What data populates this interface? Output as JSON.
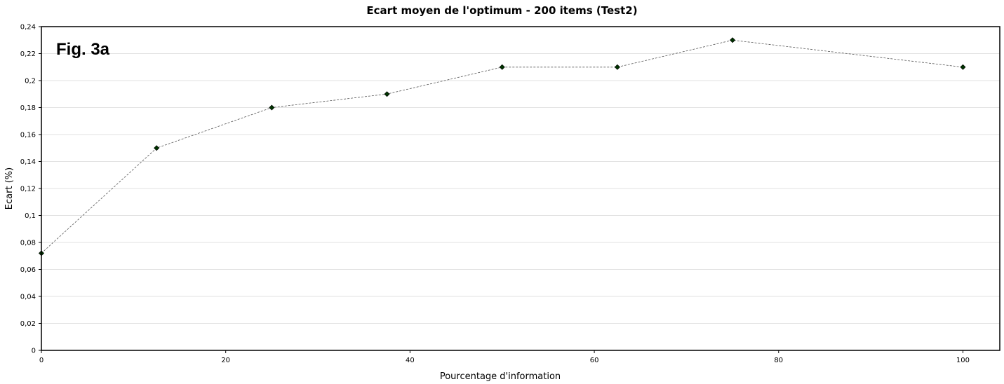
{
  "chart_data": {
    "type": "line",
    "title": "Ecart moyen de l'optimum - 200 items (Test2)",
    "annotation": "Fig. 3a",
    "xlabel": "Pourcentage d'information",
    "ylabel": "Ecart (%)",
    "xlim": [
      0,
      104
    ],
    "ylim": [
      0,
      0.24
    ],
    "x_ticks": [
      0,
      20,
      40,
      60,
      80,
      100
    ],
    "x_tick_labels": [
      "0",
      "20",
      "40",
      "60",
      "80",
      "100"
    ],
    "y_ticks": [
      0,
      0.02,
      0.04,
      0.06,
      0.08,
      0.1,
      0.12,
      0.14,
      0.16,
      0.18,
      0.2,
      0.22,
      0.24
    ],
    "y_tick_labels": [
      "0",
      "0,02",
      "0,04",
      "0,06",
      "0,08",
      "0,1",
      "0,12",
      "0,14",
      "0,16",
      "0,18",
      "0,2",
      "0,22",
      "0,24"
    ],
    "grid": "horizontal",
    "legend": "none",
    "series": [
      {
        "x": [
          0,
          12.5,
          25,
          37.5,
          50,
          62.5,
          75,
          100
        ],
        "y": [
          0.072,
          0.15,
          0.18,
          0.19,
          0.21,
          0.21,
          0.23,
          0.21
        ]
      }
    ],
    "colors": {
      "marker": "#003300",
      "line": "#555555",
      "grid": "#e2e2e2",
      "axis": "#000000"
    }
  }
}
